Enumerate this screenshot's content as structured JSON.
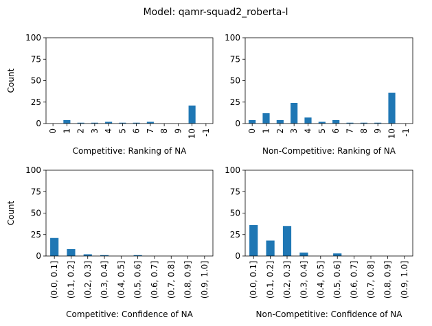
{
  "figure": {
    "suptitle": "Model: qamr-squad2_roberta-l"
  },
  "chart_data": [
    {
      "type": "bar",
      "title": "",
      "xlabel": "Competitive: Ranking of NA",
      "ylabel": "Count",
      "ylim": [
        0,
        100
      ],
      "yticks": [
        "0",
        "25",
        "50",
        "75",
        "100"
      ],
      "categories": [
        "0",
        "1",
        "2",
        "3",
        "4",
        "5",
        "6",
        "7",
        "8",
        "9",
        "10",
        "-1"
      ],
      "values": [
        0,
        4,
        1,
        1,
        2,
        1,
        1,
        2,
        0,
        0,
        21,
        0
      ],
      "color": "#1f77b4",
      "grid": false
    },
    {
      "type": "bar",
      "title": "",
      "xlabel": "Non-Competitive: Ranking of NA",
      "ylabel": "",
      "ylim": [
        0,
        100
      ],
      "yticks": [
        "0",
        "25",
        "50",
        "75",
        "100"
      ],
      "categories": [
        "0",
        "1",
        "2",
        "3",
        "4",
        "5",
        "6",
        "7",
        "8",
        "9",
        "10",
        "-1"
      ],
      "values": [
        4,
        12,
        4,
        24,
        7,
        2,
        4,
        1,
        1,
        1,
        36,
        0
      ],
      "color": "#1f77b4",
      "grid": false
    },
    {
      "type": "bar",
      "title": "",
      "xlabel": "Competitive: Confidence of NA",
      "ylabel": "Count",
      "ylim": [
        0,
        100
      ],
      "yticks": [
        "0",
        "25",
        "50",
        "75",
        "100"
      ],
      "categories": [
        "(0.0, 0.1]",
        "(0.1, 0.2]",
        "(0.2, 0.3]",
        "(0.3, 0.4]",
        "(0.4, 0.5]",
        "(0.5, 0.6]",
        "(0.6, 0.7]",
        "(0.7, 0.8]",
        "(0.8, 0.9]",
        "(0.9, 1.0]"
      ],
      "values": [
        21,
        8,
        2,
        1,
        0,
        1,
        0,
        0,
        0,
        0
      ],
      "color": "#1f77b4",
      "grid": false
    },
    {
      "type": "bar",
      "title": "",
      "xlabel": "Non-Competitive: Confidence of NA",
      "ylabel": "",
      "ylim": [
        0,
        100
      ],
      "yticks": [
        "0",
        "25",
        "50",
        "75",
        "100"
      ],
      "categories": [
        "(0.0, 0.1]",
        "(0.1, 0.2]",
        "(0.2, 0.3]",
        "(0.3, 0.4]",
        "(0.4, 0.5]",
        "(0.5, 0.6]",
        "(0.6, 0.7]",
        "(0.7, 0.8]",
        "(0.8, 0.9]",
        "(0.9, 1.0]"
      ],
      "values": [
        36,
        18,
        35,
        4,
        0,
        3,
        0,
        0,
        0,
        0
      ],
      "color": "#1f77b4",
      "grid": false
    }
  ]
}
